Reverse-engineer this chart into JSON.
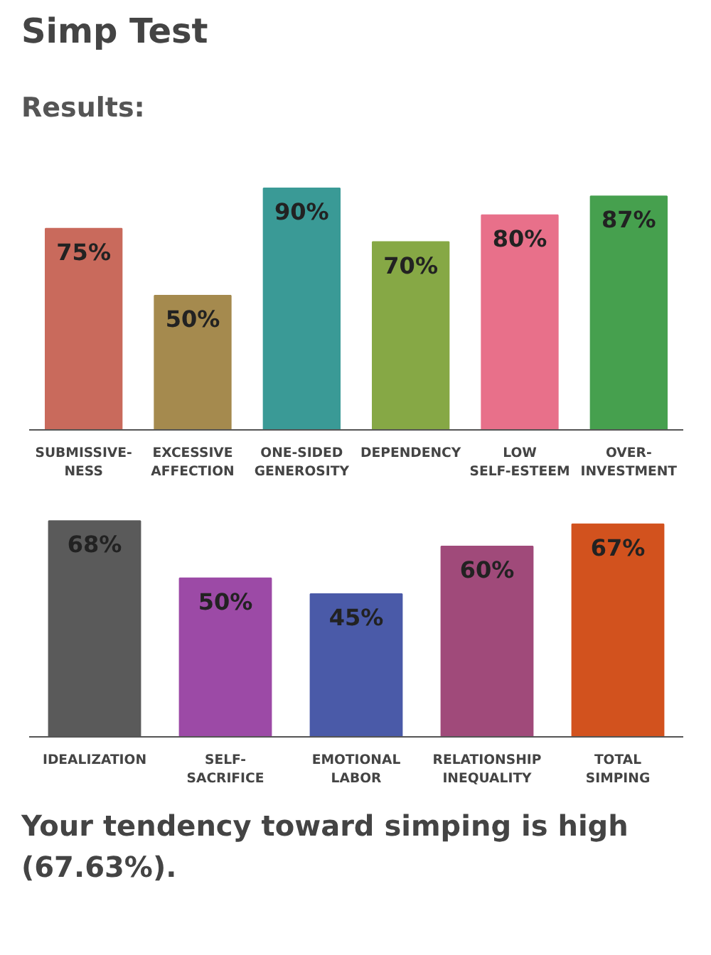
{
  "chart_data": [
    {
      "type": "bar",
      "title": "Simp Test",
      "subtitle": "Results:",
      "categories": [
        "SUBMISSIVE-\nNESS",
        "EXCESSIVE\nAFFECTION",
        "ONE-SIDED\nGENEROSITY",
        "DEPENDENCY",
        "LOW\nSELF-ESTEEM",
        "OVER-\nINVESTMENT"
      ],
      "values": [
        75,
        50,
        90,
        70,
        80,
        87
      ],
      "value_labels": [
        "75%",
        "50%",
        "90%",
        "70%",
        "80%",
        "87%"
      ],
      "colors": [
        "#c96a5c",
        "#a58a4e",
        "#3a9a96",
        "#86a845",
        "#e8708a",
        "#46a04e"
      ],
      "tick_labels": "x",
      "grid": false
    },
    {
      "type": "bar",
      "categories": [
        "IDEALIZATION",
        "SELF-\nSACRIFICE",
        "EMOTIONAL\nLABOR",
        "RELATIONSHIP\nINEQUALITY",
        "TOTAL\nSIMPING"
      ],
      "values": [
        68,
        50,
        45,
        60,
        67
      ],
      "value_labels": [
        "68%",
        "50%",
        "45%",
        "60%",
        "67%"
      ],
      "colors": [
        "#5a5a5a",
        "#9c4aa6",
        "#4a5aa8",
        "#a04a7a",
        "#d2521e"
      ],
      "tick_labels": "x",
      "grid": false,
      "annotations": [
        "Your tendency toward simping is high (67.63%)."
      ]
    }
  ]
}
